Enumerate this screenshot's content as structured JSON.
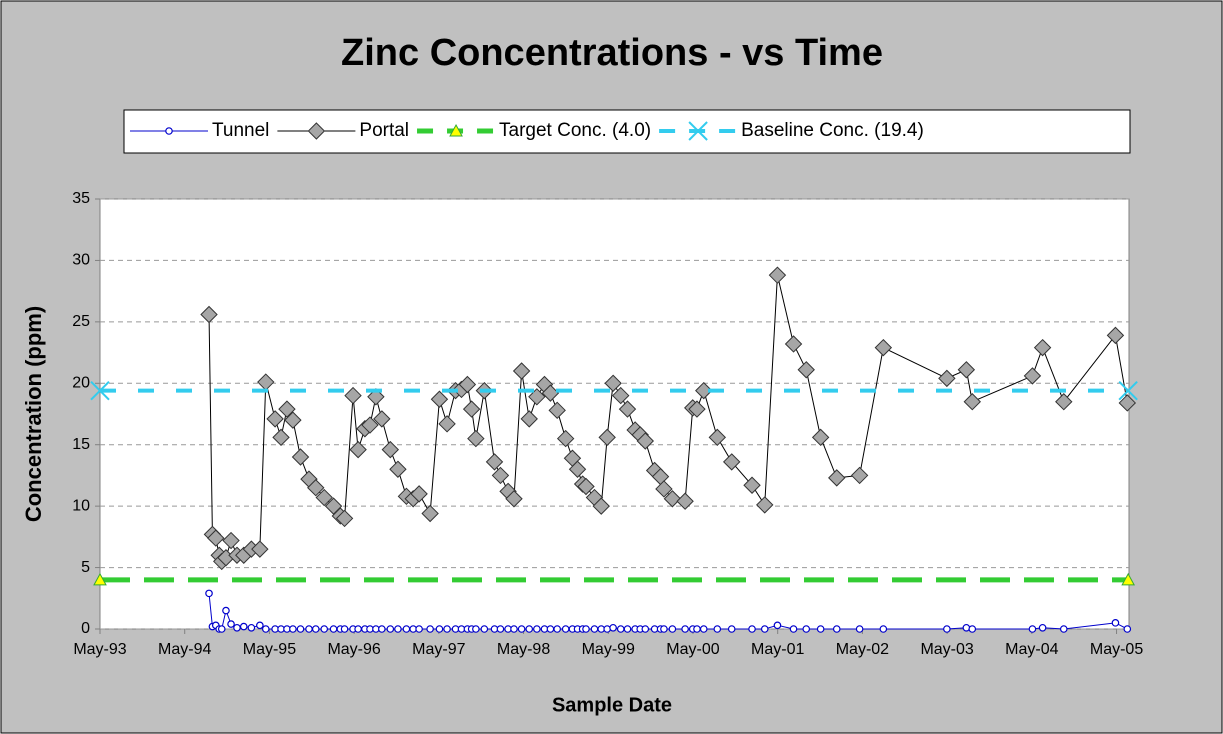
{
  "chart_data": {
    "type": "line",
    "title": "Zinc Concentrations - vs Time",
    "x_label": "Sample Date",
    "y_label": "Concentration (ppm)",
    "xlim": [
      1993.333,
      2005.48
    ],
    "xticks": [
      {
        "value": 1993.333,
        "label": "May-93"
      },
      {
        "value": 1994.333,
        "label": "May-94"
      },
      {
        "value": 1995.333,
        "label": "May-95"
      },
      {
        "value": 1996.333,
        "label": "May-96"
      },
      {
        "value": 1997.333,
        "label": "May-97"
      },
      {
        "value": 1998.333,
        "label": "May-98"
      },
      {
        "value": 1999.333,
        "label": "May-99"
      },
      {
        "value": 2000.333,
        "label": "May-00"
      },
      {
        "value": 2001.333,
        "label": "May-01"
      },
      {
        "value": 2002.333,
        "label": "May-02"
      },
      {
        "value": 2003.333,
        "label": "May-03"
      },
      {
        "value": 2004.333,
        "label": "May-04"
      },
      {
        "value": 2005.333,
        "label": "May-05"
      }
    ],
    "ylim": [
      0,
      35
    ],
    "yticks": [
      0,
      5,
      10,
      15,
      20,
      25,
      30,
      35
    ],
    "grid": true,
    "x": [
      1994.62,
      1994.66,
      1994.7,
      1994.74,
      1994.77,
      1994.82,
      1994.88,
      1994.95,
      1995.03,
      1995.12,
      1995.22,
      1995.29,
      1995.4,
      1995.47,
      1995.54,
      1995.61,
      1995.7,
      1995.8,
      1995.88,
      1995.98,
      1996.09,
      1996.17,
      1996.22,
      1996.32,
      1996.38,
      1996.46,
      1996.52,
      1996.59,
      1996.66,
      1996.76,
      1996.85,
      1996.95,
      1997.03,
      1997.1,
      1997.23,
      1997.34,
      1997.43,
      1997.53,
      1997.6,
      1997.67,
      1997.72,
      1997.77,
      1997.87,
      1997.99,
      1998.06,
      1998.15,
      1998.22,
      1998.31,
      1998.4,
      1998.49,
      1998.58,
      1998.65,
      1998.73,
      1998.83,
      1998.91,
      1998.97,
      1999.03,
      1999.07,
      1999.17,
      1999.25,
      1999.32,
      1999.39,
      1999.48,
      1999.56,
      1999.65,
      1999.71,
      1999.77,
      1999.88,
      1999.95,
      1999.99,
      2000.09,
      2000.24,
      2000.33,
      2000.38,
      2000.46,
      2000.62,
      2000.79,
      2001.03,
      2001.18,
      2001.33,
      2001.52,
      2001.67,
      2001.84,
      2002.03,
      2002.3,
      2002.58,
      2003.33,
      2003.56,
      2003.63,
      2004.34,
      2004.46,
      2004.71,
      2005.32,
      2005.46
    ],
    "series": [
      {
        "name": "Tunnel",
        "color": "#0000cc",
        "marker": "circle",
        "values": [
          2.9,
          0.2,
          0.3,
          0,
          0,
          1.5,
          0.4,
          0.1,
          0.2,
          0.1,
          0.3,
          0,
          0,
          0,
          0,
          0,
          0,
          0,
          0,
          0,
          0,
          0,
          0,
          0,
          0,
          0,
          0,
          0,
          0,
          0,
          0,
          0,
          0,
          0,
          0,
          0,
          0,
          0,
          0,
          0,
          0,
          0,
          0,
          0,
          0,
          0,
          0,
          0,
          0,
          0,
          0,
          0,
          0,
          0,
          0,
          0,
          0,
          0,
          0,
          0,
          0,
          0.1,
          0,
          0,
          0,
          0,
          0,
          0,
          0,
          0,
          0,
          0,
          0,
          0,
          0,
          0,
          0,
          0,
          0,
          0.3,
          0,
          0,
          0,
          0,
          0,
          0,
          0,
          0.1,
          0,
          0,
          0.1,
          0,
          0.5,
          0
        ]
      },
      {
        "name": "Portal",
        "color": "#000000",
        "marker": "diamond",
        "values": [
          25.6,
          7.7,
          7.4,
          6.0,
          5.5,
          5.8,
          7.2,
          6.0,
          6.0,
          6.5,
          6.5,
          20.1,
          17.1,
          15.6,
          17.9,
          17.0,
          14.0,
          12.2,
          11.5,
          10.7,
          10.0,
          9.2,
          9.0,
          19.0,
          14.6,
          16.3,
          16.6,
          18.9,
          17.1,
          14.6,
          13.0,
          10.8,
          10.6,
          11.0,
          9.4,
          18.7,
          16.7,
          19.4,
          19.5,
          19.9,
          17.9,
          15.5,
          19.4,
          13.6,
          12.5,
          11.2,
          10.6,
          21.0,
          17.1,
          18.9,
          19.9,
          19.2,
          17.8,
          15.5,
          13.9,
          13.0,
          11.8,
          11.6,
          10.7,
          10.0,
          15.6,
          20.0,
          19.0,
          17.9,
          16.2,
          15.8,
          15.3,
          12.9,
          12.4,
          11.4,
          10.6,
          10.4,
          18.0,
          17.9,
          19.4,
          15.6,
          13.6,
          11.7,
          10.1,
          28.8,
          23.2,
          21.1,
          15.6,
          12.3,
          12.5,
          22.9,
          20.4,
          21.1,
          18.5,
          20.6,
          22.9,
          18.5,
          23.9,
          18.4
        ]
      },
      {
        "name": "Target Conc. (4.0)",
        "color": "#33cc33",
        "marker": "triangle",
        "x": [
          1993.333,
          2005.47
        ],
        "values": [
          4.0,
          4.0
        ]
      },
      {
        "name": "Baseline Conc. (19.4)",
        "color": "#33ccee",
        "marker": "cross",
        "x": [
          1993.333,
          2005.47
        ],
        "values": [
          19.4,
          19.4
        ]
      }
    ]
  }
}
